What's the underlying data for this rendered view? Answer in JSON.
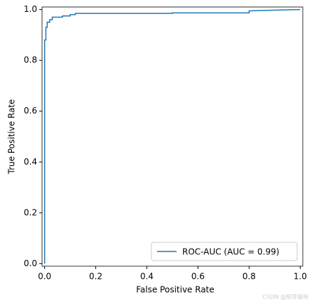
{
  "chart_data": {
    "type": "line",
    "xlabel": "False Positive Rate",
    "ylabel": "True Positive Rate",
    "x": [
      0,
      0,
      0.005,
      0.005,
      0.01,
      0.01,
      0.02,
      0.02,
      0.03,
      0.03,
      0.07,
      0.07,
      0.1,
      0.1,
      0.12,
      0.12,
      0.5,
      0.5,
      0.8,
      0.8,
      1
    ],
    "series": [
      {
        "name": "ROC-AUC (AUC = 0.99)",
        "color": "#1f77b4",
        "values": [
          0,
          0.88,
          0.88,
          0.93,
          0.93,
          0.95,
          0.95,
          0.96,
          0.96,
          0.97,
          0.97,
          0.975,
          0.975,
          0.98,
          0.98,
          0.985,
          0.985,
          0.987,
          0.987,
          0.995,
          1
        ]
      }
    ],
    "xlim": [
      -0.01,
      1.01
    ],
    "ylim": [
      -0.01,
      1.01
    ],
    "xticks": [
      {
        "value": 0,
        "label": "0.0"
      },
      0.2,
      0.4,
      0.6,
      0.8,
      {
        "value": 1,
        "label": "1.0"
      }
    ],
    "yticks": [
      {
        "value": 0,
        "label": "0.0"
      },
      0.2,
      0.4,
      0.6,
      0.8,
      {
        "value": 1,
        "label": "1.0"
      }
    ],
    "legend": "lower right",
    "watermark": "CSDN @矩阵猫咪"
  }
}
